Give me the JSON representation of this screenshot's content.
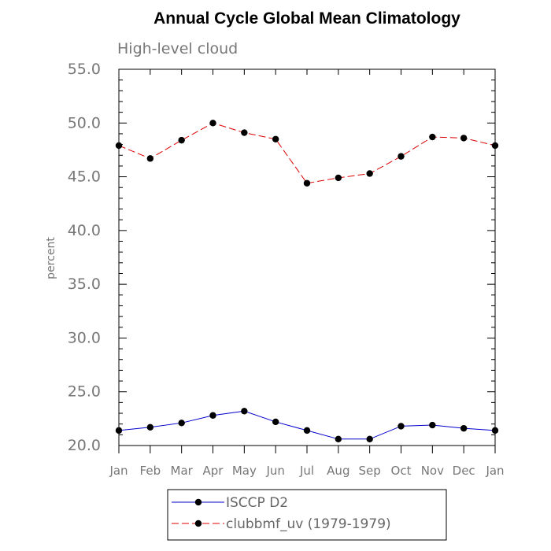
{
  "chart_data": {
    "type": "line",
    "title": "Annual Cycle Global Mean Climatology",
    "subtitle": "High-level cloud",
    "xlabel": "",
    "ylabel": "percent",
    "categories": [
      "Jan",
      "Feb",
      "Mar",
      "Apr",
      "May",
      "Jun",
      "Jul",
      "Aug",
      "Sep",
      "Oct",
      "Nov",
      "Dec",
      "Jan"
    ],
    "ylim": [
      20.0,
      55.0
    ],
    "yticks": [
      "20.0",
      "25.0",
      "30.0",
      "35.0",
      "40.0",
      "45.0",
      "50.0",
      "55.0"
    ],
    "grid": false,
    "legend_position": "bottom",
    "series": [
      {
        "name": "ISCCP D2",
        "color": "#0000cc",
        "line_style": "solid",
        "marker": "filled-circle",
        "values": [
          21.4,
          21.7,
          22.1,
          22.8,
          23.2,
          22.2,
          21.4,
          20.6,
          20.6,
          21.8,
          21.9,
          21.6,
          21.4
        ]
      },
      {
        "name": "clubbmf_uv (1979-1979)",
        "color": "#dd0000",
        "line_style": "dashed",
        "marker": "filled-circle",
        "values": [
          47.9,
          46.7,
          48.4,
          50.0,
          49.1,
          48.5,
          44.4,
          44.9,
          45.3,
          46.9,
          48.7,
          48.6,
          47.9
        ]
      }
    ]
  }
}
